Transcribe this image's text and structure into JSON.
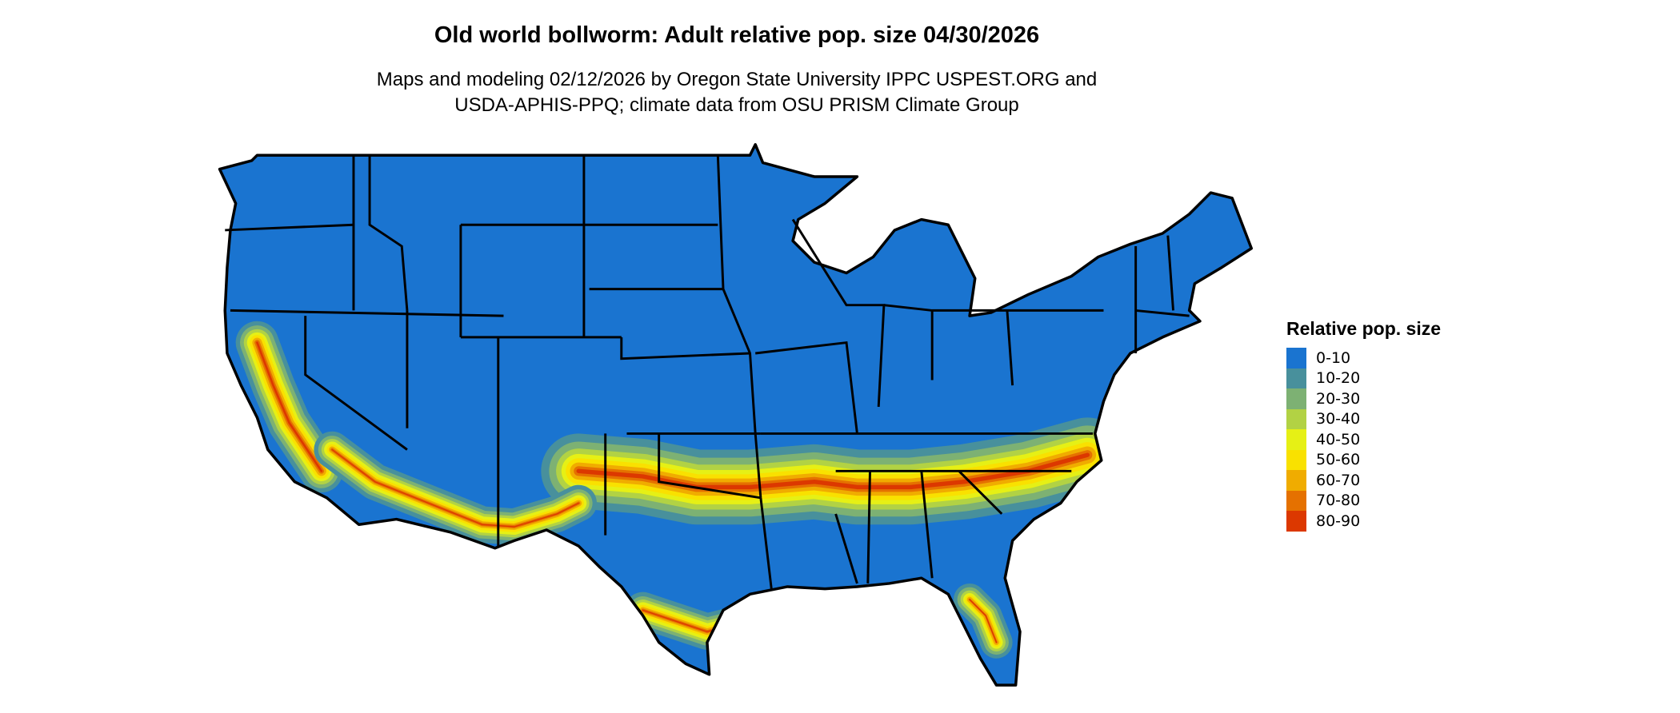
{
  "title": "Old world bollworm: Adult relative pop. size 04/30/2026",
  "subtitle_line1": "Maps and modeling 02/12/2026 by Oregon State University IPPC USPEST.ORG and",
  "subtitle_line2": "USDA-APHIS-PPQ; climate data from OSU PRISM Climate Group",
  "legend": {
    "title": "Relative pop. size",
    "classes": [
      {
        "label": "0-10",
        "color": "#1a74d0"
      },
      {
        "label": "10-20",
        "color": "#48909c"
      },
      {
        "label": "20-30",
        "color": "#7db173"
      },
      {
        "label": "30-40",
        "color": "#b2d244"
      },
      {
        "label": "40-50",
        "color": "#e6f015"
      },
      {
        "label": "50-60",
        "color": "#f9e100"
      },
      {
        "label": "60-70",
        "color": "#f0ac00"
      },
      {
        "label": "70-80",
        "color": "#e57100"
      },
      {
        "label": "80-90",
        "color": "#dc3800"
      }
    ]
  },
  "map": {
    "region": "Contiguous United States",
    "boundary_color": "#000000"
  }
}
